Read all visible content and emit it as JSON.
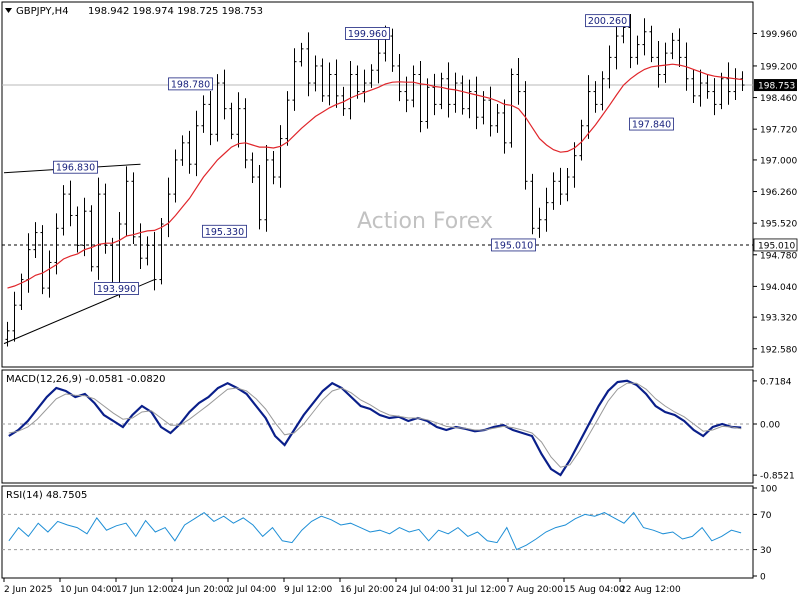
{
  "header": {
    "symbol": "GBPJPY,H4",
    "ohlc": "198.942 198.974 198.725 198.753"
  },
  "watermark": "Action Forex",
  "colors": {
    "candle": "#000000",
    "ma": "#e0262b",
    "macd": "#0a1f8a",
    "signal": "#9a9a9a",
    "rsi": "#1f8fd6",
    "level_box_bg": "#ffffff",
    "level_box_border": "#1a237e",
    "level_text": "#1a237e",
    "current_price_bg": "#000000",
    "current_price_text": "#ffffff",
    "grid_text": "#000000"
  },
  "chart_data": [
    {
      "type": "candlestick",
      "title": "GBPJPY,H4",
      "ylim": [
        192.2,
        200.65
      ],
      "y_ticks": [
        "199.960",
        "199.200",
        "198.460",
        "197.720",
        "197.000",
        "196.260",
        "195.520",
        "194.780",
        "194.040",
        "193.320",
        "192.580"
      ],
      "x_ticks": [
        "2 Jun 2025",
        "10 Jun 04:00",
        "17 Jun 12:00",
        "24 Jun 20:00",
        "2 Jul 04:00",
        "9 Jul 12:00",
        "16 Jul 20:00",
        "24 Jul 04:00",
        "31 Jul 12:00",
        "7 Aug 20:00",
        "15 Aug 04:00",
        "22 Aug 12:00"
      ],
      "x_tick_index": [
        0,
        8,
        16,
        24,
        32,
        40,
        48,
        56,
        64,
        72,
        80,
        88
      ],
      "current_price": "198.753",
      "key_levels": [
        "196.830",
        "198.780",
        "193.990",
        "195.330",
        "199.960",
        "195.010",
        "200.260",
        "197.840"
      ],
      "horizontal_levels": [
        {
          "value": 198.753,
          "style": "solid"
        },
        {
          "value": 195.01,
          "style": "dashed",
          "label": "195.010"
        }
      ],
      "trendlines": [
        {
          "from": [
            0,
            196.7
          ],
          "to": [
            19,
            196.9
          ]
        },
        {
          "from": [
            0,
            192.7
          ],
          "to": [
            21,
            194.2
          ]
        }
      ],
      "close": [
        193.0,
        193.6,
        194.2,
        194.9,
        195.3,
        194.0,
        194.6,
        195.4,
        196.2,
        195.7,
        195.0,
        195.8,
        194.5,
        196.2,
        195.0,
        194.0,
        195.5,
        196.5,
        195.2,
        194.7,
        195.0,
        194.2,
        195.5,
        196.2,
        197.0,
        197.4,
        196.9,
        197.8,
        198.3,
        197.6,
        198.8,
        198.2,
        197.6,
        198.2,
        197.0,
        196.6,
        195.6,
        197.0,
        196.6,
        197.5,
        198.4,
        199.3,
        199.6,
        198.8,
        199.2,
        198.5,
        199.0,
        198.5,
        198.2,
        199.0,
        198.6,
        198.8,
        199.1,
        199.5,
        199.9,
        199.2,
        198.6,
        198.4,
        199.0,
        197.9,
        198.7,
        198.3,
        198.9,
        198.3,
        198.8,
        198.2,
        198.6,
        198.0,
        198.4,
        197.8,
        198.1,
        197.4,
        199.0,
        198.6,
        196.5,
        195.4,
        195.6,
        196.0,
        196.5,
        196.2,
        196.6,
        197.1,
        197.8,
        198.6,
        198.3,
        198.9,
        199.4,
        199.9,
        200.1,
        199.4,
        199.7,
        200.0,
        199.4,
        199.0,
        199.5,
        199.8,
        199.4,
        198.9,
        198.5,
        198.8,
        198.6,
        198.3,
        198.9,
        198.6,
        198.9,
        198.753
      ],
      "ma": [
        194.0,
        194.05,
        194.12,
        194.2,
        194.3,
        194.35,
        194.45,
        194.55,
        194.68,
        194.75,
        194.8,
        194.9,
        194.95,
        195.02,
        195.05,
        195.05,
        195.12,
        195.22,
        195.25,
        195.3,
        195.34,
        195.35,
        195.42,
        195.52,
        195.7,
        195.9,
        196.1,
        196.35,
        196.6,
        196.8,
        197.0,
        197.15,
        197.3,
        197.38,
        197.4,
        197.35,
        197.3,
        197.3,
        197.28,
        197.32,
        197.42,
        197.58,
        197.74,
        197.88,
        198.02,
        198.12,
        198.22,
        198.3,
        198.36,
        198.45,
        198.52,
        198.58,
        198.64,
        198.7,
        198.78,
        198.82,
        198.83,
        198.82,
        198.82,
        198.78,
        198.76,
        198.72,
        198.7,
        198.66,
        198.64,
        198.6,
        198.56,
        198.52,
        198.48,
        198.44,
        198.38,
        198.3,
        198.28,
        198.2,
        198.0,
        197.75,
        197.5,
        197.35,
        197.24,
        197.18,
        197.2,
        197.28,
        197.42,
        197.62,
        197.82,
        198.05,
        198.28,
        198.52,
        198.75,
        198.9,
        199.02,
        199.12,
        199.18,
        199.2,
        199.22,
        199.24,
        199.22,
        199.18,
        199.12,
        199.06,
        199.0,
        198.96,
        198.94,
        198.92,
        198.9,
        198.88
      ]
    },
    {
      "type": "line",
      "title": "MACD(12,26,9) -0.0581 -0.0820",
      "ylim": [
        -0.95,
        0.85
      ],
      "y_ticks": [
        "0.7184",
        "0.00",
        "-0.8521"
      ],
      "y_tick_values": [
        0.7184,
        0.0,
        -0.8521
      ],
      "series": [
        {
          "name": "MACD",
          "values": [
            -0.2,
            -0.1,
            0.05,
            0.25,
            0.45,
            0.6,
            0.55,
            0.45,
            0.5,
            0.35,
            0.15,
            0.05,
            -0.05,
            0.15,
            0.3,
            0.2,
            -0.05,
            -0.15,
            0.0,
            0.2,
            0.35,
            0.45,
            0.6,
            0.68,
            0.6,
            0.5,
            0.3,
            0.1,
            -0.2,
            -0.35,
            -0.1,
            0.15,
            0.35,
            0.55,
            0.68,
            0.6,
            0.45,
            0.3,
            0.25,
            0.15,
            0.1,
            0.12,
            0.05,
            0.1,
            0.05,
            -0.05,
            -0.1,
            -0.05,
            -0.08,
            -0.12,
            -0.1,
            -0.05,
            -0.02,
            -0.1,
            -0.15,
            -0.2,
            -0.5,
            -0.75,
            -0.85,
            -0.6,
            -0.3,
            0.0,
            0.3,
            0.55,
            0.7,
            0.72,
            0.65,
            0.5,
            0.3,
            0.2,
            0.15,
            0.05,
            -0.1,
            -0.2,
            -0.05,
            0.0,
            -0.05,
            -0.06
          ]
        },
        {
          "name": "Signal",
          "values": [
            -0.15,
            -0.12,
            -0.05,
            0.08,
            0.25,
            0.42,
            0.5,
            0.48,
            0.47,
            0.42,
            0.3,
            0.18,
            0.08,
            0.1,
            0.2,
            0.22,
            0.1,
            -0.02,
            -0.02,
            0.08,
            0.2,
            0.32,
            0.45,
            0.58,
            0.6,
            0.55,
            0.42,
            0.25,
            0.02,
            -0.18,
            -0.15,
            0.0,
            0.2,
            0.4,
            0.55,
            0.6,
            0.52,
            0.4,
            0.32,
            0.22,
            0.15,
            0.13,
            0.1,
            0.1,
            0.07,
            0.02,
            -0.04,
            -0.06,
            -0.07,
            -0.1,
            -0.1,
            -0.07,
            -0.04,
            -0.06,
            -0.1,
            -0.15,
            -0.3,
            -0.55,
            -0.72,
            -0.68,
            -0.45,
            -0.18,
            0.1,
            0.38,
            0.58,
            0.68,
            0.68,
            0.58,
            0.42,
            0.3,
            0.2,
            0.12,
            0.0,
            -0.12,
            -0.1,
            -0.04,
            -0.05,
            -0.08
          ]
        }
      ]
    },
    {
      "type": "line",
      "title": "RSI(14) 48.7505",
      "ylim": [
        0,
        100
      ],
      "y_ticks": [
        "100",
        "70",
        "30",
        "0"
      ],
      "y_tick_values": [
        100,
        70,
        30,
        0
      ],
      "series": [
        {
          "name": "RSI",
          "values": [
            40,
            55,
            45,
            60,
            50,
            62,
            58,
            55,
            48,
            66,
            52,
            57,
            60,
            45,
            63,
            50,
            55,
            40,
            58,
            65,
            72,
            62,
            68,
            60,
            66,
            58,
            45,
            55,
            40,
            38,
            52,
            62,
            68,
            64,
            58,
            60,
            55,
            50,
            52,
            48,
            55,
            50,
            53,
            40,
            52,
            48,
            55,
            45,
            50,
            40,
            38,
            55,
            30,
            35,
            42,
            50,
            55,
            58,
            65,
            70,
            68,
            72,
            66,
            60,
            72,
            55,
            52,
            48,
            50,
            42,
            45,
            55,
            40,
            45,
            52,
            49
          ]
        }
      ]
    }
  ]
}
